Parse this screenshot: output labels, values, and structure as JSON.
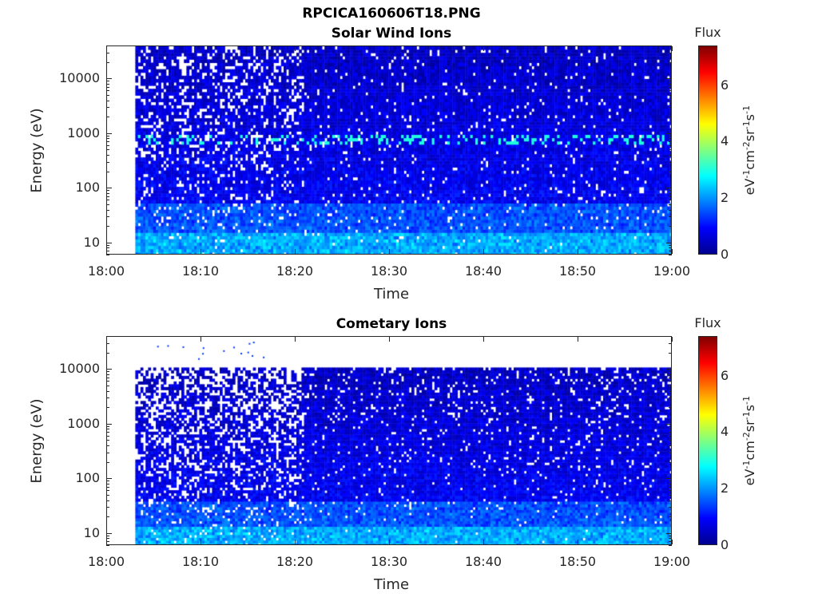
{
  "figure": {
    "title": "RPCICA160606T18.PNG"
  },
  "colors": {
    "axis": "#262626",
    "title": "#000000"
  },
  "colorbar": {
    "title": "Flux",
    "unit_base": [
      "eV",
      "cm",
      "sr",
      "s"
    ],
    "unit_exp": [
      "-1",
      "-2",
      "-1",
      "-1"
    ],
    "ticks": [
      "0",
      "2",
      "4",
      "6"
    ],
    "range": [
      0,
      7.4
    ],
    "colormap": "jet"
  },
  "chart_data": [
    {
      "type": "heatmap",
      "title": "Solar Wind Ions",
      "xlabel": "Time",
      "ylabel": "Energy (eV)",
      "x_ticks": [
        "18:00",
        "18:10",
        "18:20",
        "18:30",
        "18:40",
        "18:50",
        "19:00"
      ],
      "y_ticks": [
        "10",
        "100",
        "1000",
        "10000"
      ],
      "y_scale": "log",
      "xlim": [
        "18:00",
        "19:00"
      ],
      "ylim": [
        6,
        40000
      ],
      "data_start": "18:03",
      "data_top_energy": 40000,
      "colorbar_label": "Flux",
      "clim": [
        0,
        7.4
      ]
    },
    {
      "type": "heatmap",
      "title": "Cometary Ions",
      "xlabel": "Time",
      "ylabel": "Energy (eV)",
      "x_ticks": [
        "18:00",
        "18:10",
        "18:20",
        "18:30",
        "18:40",
        "18:50",
        "19:00"
      ],
      "y_ticks": [
        "10",
        "100",
        "1000",
        "10000"
      ],
      "y_scale": "log",
      "xlim": [
        "18:00",
        "19:00"
      ],
      "ylim": [
        6,
        40000
      ],
      "data_start": "18:03",
      "data_top_energy": 11000,
      "colorbar_label": "Flux",
      "clim": [
        0,
        7.4
      ]
    }
  ]
}
